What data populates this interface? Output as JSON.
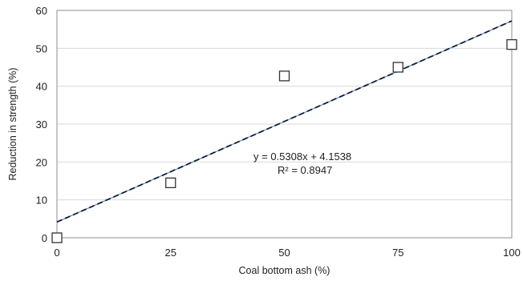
{
  "chart_data": {
    "type": "scatter",
    "xlabel": "Coal bottom ash (%)",
    "ylabel": "Reduction in strength (%)",
    "xlim": [
      0,
      100
    ],
    "ylim": [
      0,
      60
    ],
    "x_ticks": [
      0,
      25,
      50,
      75,
      100
    ],
    "y_ticks": [
      0,
      10,
      20,
      30,
      40,
      50,
      60
    ],
    "x_tick_labels": [
      "0",
      "25",
      "50",
      "75",
      "100"
    ],
    "y_tick_labels": [
      "0",
      "10",
      "20",
      "30",
      "40",
      "50",
      "60"
    ],
    "grid": "horizontal",
    "points": [
      {
        "x": 0,
        "y": 0
      },
      {
        "x": 25,
        "y": 14.5
      },
      {
        "x": 50,
        "y": 42.7
      },
      {
        "x": 75,
        "y": 45
      },
      {
        "x": 100,
        "y": 51
      }
    ],
    "trendline": {
      "slope": 0.5308,
      "intercept": 4.1538,
      "style": "dashed"
    },
    "equation_label": "y = 0.5308x + 4.1538",
    "r2_label": "R² = 0.8947",
    "colors": {
      "trendline": "#1a1a2e",
      "trendline_highlight": "#4a90c8",
      "marker": "#333333",
      "grid": "#d9d9d9"
    }
  }
}
